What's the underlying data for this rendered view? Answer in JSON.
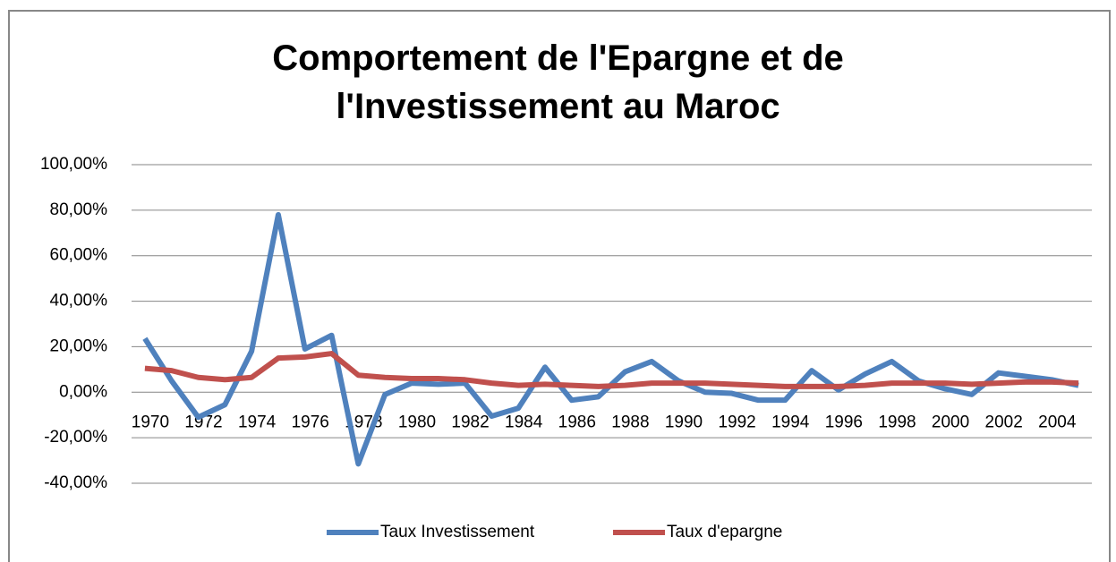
{
  "chart_data": {
    "type": "line",
    "title": "Comportement de l'Epargne et de l'Investissement au Maroc",
    "categories": [
      "1970",
      null,
      "1972",
      null,
      "1974",
      null,
      "1976",
      null,
      "1978",
      null,
      "1980",
      null,
      "1982",
      null,
      "1984",
      null,
      "1986",
      null,
      "1988",
      null,
      "1990",
      null,
      "1992",
      null,
      "1994",
      null,
      "1996",
      null,
      "1998",
      null,
      "2000",
      null,
      "2002",
      null,
      "2004",
      null
    ],
    "series": [
      {
        "name": "Taux Investissement",
        "color": "#4f81bd",
        "values": [
          23.6,
          5,
          -11,
          -5.5,
          18,
          78,
          19,
          25,
          -31.5,
          -1,
          4,
          3.5,
          4,
          -10.5,
          -7,
          11,
          -3.5,
          -2,
          9,
          13.5,
          5,
          0,
          -0.5,
          -3.5,
          -3.5,
          9.5,
          1,
          8,
          13.5,
          5,
          1.5,
          -1,
          8.5,
          7,
          5.5,
          3
        ]
      },
      {
        "name": "Taux d'epargne",
        "color": "#c0504d",
        "values": [
          10.5,
          9.5,
          6.5,
          5.5,
          6.5,
          15,
          15.5,
          17,
          7.5,
          6.5,
          6,
          6,
          5.5,
          4,
          3,
          3.5,
          3,
          2.5,
          3,
          4,
          4,
          4,
          3.5,
          3,
          2.5,
          2.5,
          2.5,
          3,
          4,
          4,
          4,
          3.5,
          4,
          4.5,
          4.5,
          4
        ]
      }
    ],
    "ylim": [
      -40,
      100
    ],
    "yticks": [
      {
        "value": -40,
        "label": "-40,00%"
      },
      {
        "value": -20,
        "label": "-20,00%"
      },
      {
        "value": 0,
        "label": "0,00%"
      },
      {
        "value": 20,
        "label": "20,00%"
      },
      {
        "value": 40,
        "label": "40,00%"
      },
      {
        "value": 60,
        "label": "60,00%"
      },
      {
        "value": 80,
        "label": "80,00%"
      },
      {
        "value": 100,
        "label": "100,00%"
      }
    ],
    "grid": true,
    "legend": "bottom"
  }
}
